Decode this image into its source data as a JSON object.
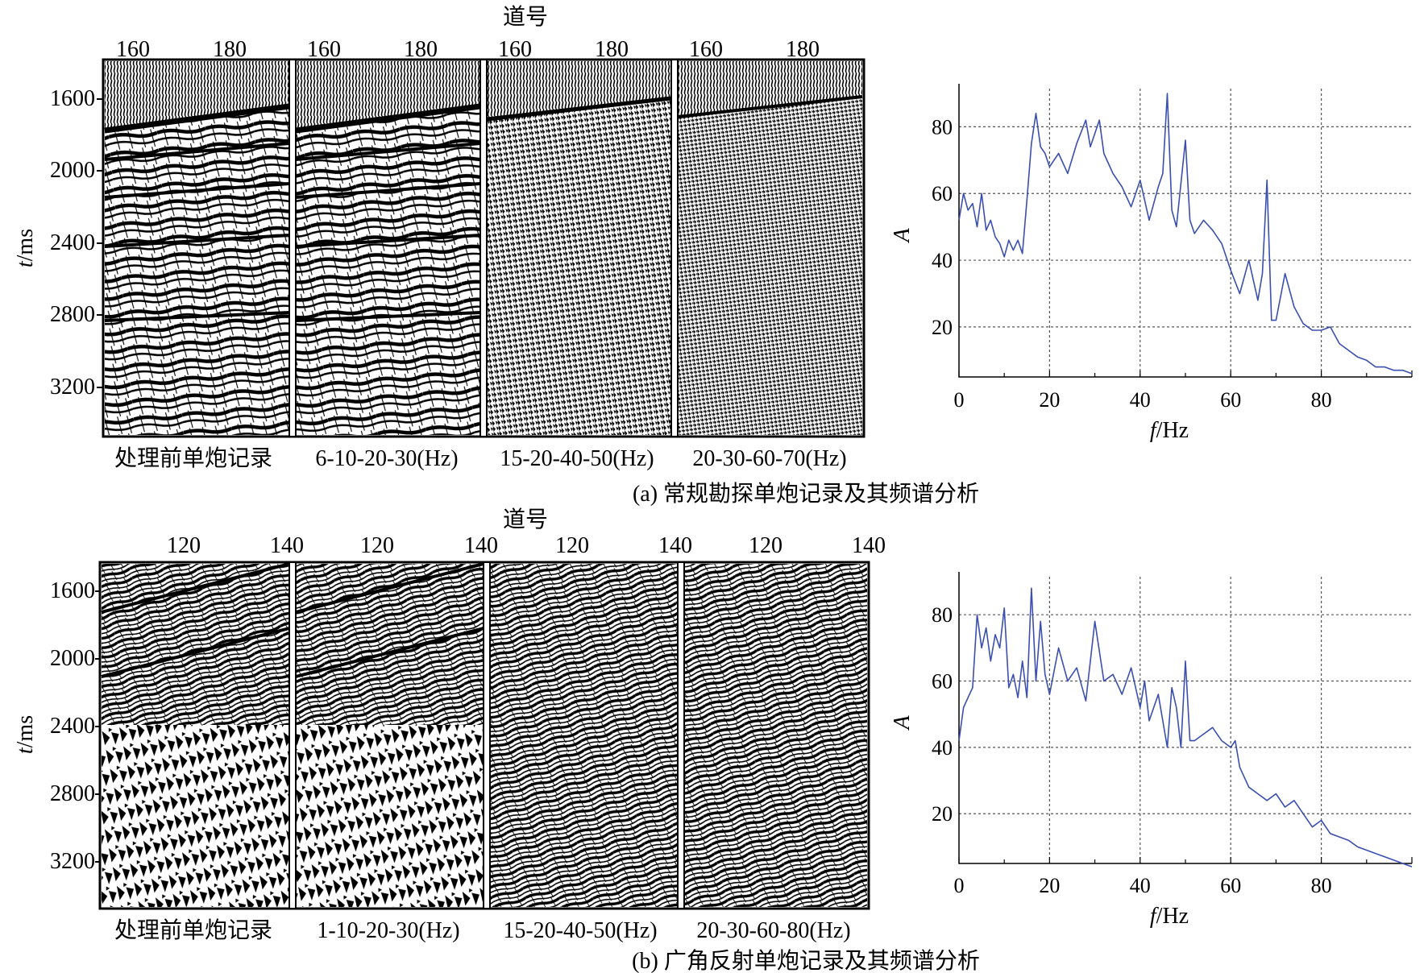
{
  "panels": [
    {
      "id": "a",
      "caption": "(a) 常规勘探单炮记录及其频谱分析",
      "gather_xlabel": "道号",
      "gather_ylabel_var": "t",
      "gather_ylabel_unit": "/ms",
      "gather_yticks": [
        "1600",
        "2000",
        "2400",
        "2800",
        "3200"
      ],
      "gather_xticks": [
        "160",
        "180"
      ],
      "sub_labels": [
        "处理前单炮记录",
        "6-10-20-30(Hz)",
        "15-20-40-50(Hz)",
        "20-30-60-70(Hz)"
      ]
    },
    {
      "id": "b",
      "caption": "(b) 广角反射单炮记录及其频谱分析",
      "gather_xlabel": "道号",
      "gather_ylabel_var": "t",
      "gather_ylabel_unit": "/ms",
      "gather_yticks": [
        "1600",
        "2000",
        "2400",
        "2800",
        "3200"
      ],
      "gather_xticks": [
        "120",
        "140"
      ],
      "sub_labels": [
        "处理前单炮记录",
        "1-10-20-30(Hz)",
        "15-20-40-50(Hz)",
        "20-30-60-80(Hz)"
      ]
    }
  ],
  "chart_data": [
    {
      "type": "line",
      "panel": "a",
      "xlabel_var": "f",
      "xlabel_unit": "/Hz",
      "ylabel": "A",
      "xlim": [
        0,
        100
      ],
      "ylim": [
        5,
        90
      ],
      "xticks": [
        0,
        20,
        40,
        60,
        80
      ],
      "yticks": [
        20,
        40,
        60,
        80
      ],
      "grid": true,
      "line_color": "#3a4fb0",
      "x": [
        0,
        1,
        2,
        3,
        4,
        5,
        6,
        7,
        8,
        9,
        10,
        11,
        12,
        13,
        14,
        15,
        16,
        17,
        18,
        19,
        20,
        22,
        24,
        26,
        28,
        29,
        30,
        31,
        32,
        34,
        36,
        38,
        40,
        41,
        42,
        44,
        45,
        46,
        47,
        48,
        50,
        51,
        52,
        54,
        56,
        58,
        60,
        62,
        64,
        66,
        67,
        68,
        69,
        70,
        72,
        74,
        76,
        78,
        80,
        82,
        84,
        86,
        88,
        90,
        92,
        94,
        96,
        98,
        100
      ],
      "y": [
        52,
        60,
        55,
        57,
        50,
        60,
        49,
        52,
        47,
        45,
        41,
        46,
        43,
        46,
        42,
        58,
        75,
        84,
        74,
        72,
        68,
        72,
        66,
        75,
        82,
        74,
        78,
        82,
        72,
        66,
        62,
        56,
        64,
        58,
        52,
        62,
        66,
        90,
        55,
        50,
        76,
        52,
        48,
        52,
        49,
        45,
        37,
        30,
        40,
        28,
        36,
        64,
        22,
        22,
        36,
        26,
        21,
        19,
        19,
        20,
        15,
        13,
        11,
        10,
        8,
        8,
        7,
        7,
        6
      ]
    },
    {
      "type": "line",
      "panel": "b",
      "xlabel_var": "f",
      "xlabel_unit": "/Hz",
      "ylabel": "A",
      "xlim": [
        0,
        100
      ],
      "ylim": [
        5,
        90
      ],
      "xticks": [
        0,
        20,
        40,
        60,
        80
      ],
      "yticks": [
        20,
        40,
        60,
        80
      ],
      "grid": true,
      "line_color": "#3a4fb0",
      "x": [
        0,
        1,
        2,
        3,
        4,
        5,
        6,
        7,
        8,
        9,
        10,
        11,
        12,
        13,
        14,
        15,
        16,
        17,
        18,
        19,
        20,
        22,
        24,
        26,
        28,
        30,
        32,
        34,
        36,
        38,
        40,
        41,
        42,
        44,
        46,
        47,
        48,
        49,
        50,
        51,
        52,
        54,
        56,
        57,
        58,
        60,
        61,
        62,
        64,
        66,
        68,
        70,
        72,
        74,
        76,
        78,
        80,
        82,
        84,
        86,
        88,
        90,
        92,
        94,
        96,
        98,
        100
      ],
      "y": [
        42,
        52,
        55,
        58,
        80,
        70,
        76,
        66,
        74,
        70,
        82,
        58,
        62,
        55,
        66,
        55,
        88,
        60,
        78,
        62,
        56,
        70,
        60,
        64,
        54,
        78,
        60,
        62,
        56,
        64,
        52,
        60,
        48,
        56,
        40,
        58,
        52,
        40,
        66,
        42,
        42,
        44,
        46,
        44,
        42,
        40,
        42,
        34,
        28,
        26,
        24,
        26,
        22,
        24,
        20,
        16,
        18,
        14,
        13,
        12,
        10,
        9,
        8,
        7,
        6,
        5,
        4
      ]
    }
  ]
}
